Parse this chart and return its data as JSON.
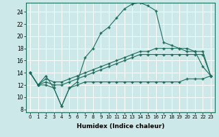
{
  "xlabel": "Humidex (Indice chaleur)",
  "ylabel": "",
  "bg_color": "#cce8e8",
  "grid_color": "#b0d0d0",
  "line_color": "#1a6b5a",
  "xlim": [
    -0.5,
    23.5
  ],
  "ylim": [
    7.5,
    25.5
  ],
  "xticks": [
    0,
    1,
    2,
    3,
    4,
    5,
    6,
    7,
    8,
    9,
    10,
    11,
    12,
    13,
    14,
    15,
    16,
    17,
    18,
    19,
    20,
    21,
    22,
    23
  ],
  "yticks": [
    8,
    10,
    12,
    14,
    16,
    18,
    20,
    22,
    24
  ],
  "series": {
    "max": [
      14.0,
      12.0,
      13.5,
      11.5,
      8.5,
      11.5,
      12.5,
      16.5,
      18.0,
      20.5,
      21.5,
      23.0,
      24.5,
      25.3,
      25.5,
      25.0,
      24.2,
      19.0,
      18.5,
      18.0,
      17.5,
      17.5,
      15.0,
      13.5
    ],
    "avg1": [
      14.0,
      12.0,
      13.0,
      12.5,
      12.5,
      13.0,
      13.5,
      14.0,
      14.5,
      15.0,
      15.5,
      16.0,
      16.5,
      17.0,
      17.5,
      17.5,
      18.0,
      18.0,
      18.0,
      18.0,
      18.0,
      17.5,
      17.5,
      13.5
    ],
    "avg2": [
      14.0,
      12.0,
      12.5,
      12.0,
      12.0,
      12.5,
      13.0,
      13.5,
      14.0,
      14.5,
      15.0,
      15.5,
      16.0,
      16.5,
      17.0,
      17.0,
      17.0,
      17.0,
      17.0,
      17.0,
      17.0,
      17.0,
      17.0,
      13.5
    ],
    "min": [
      14.0,
      12.0,
      12.0,
      11.5,
      8.5,
      11.5,
      12.0,
      12.5,
      12.5,
      12.5,
      12.5,
      12.5,
      12.5,
      12.5,
      12.5,
      12.5,
      12.5,
      12.5,
      12.5,
      12.5,
      13.0,
      13.0,
      13.0,
      13.5
    ]
  }
}
